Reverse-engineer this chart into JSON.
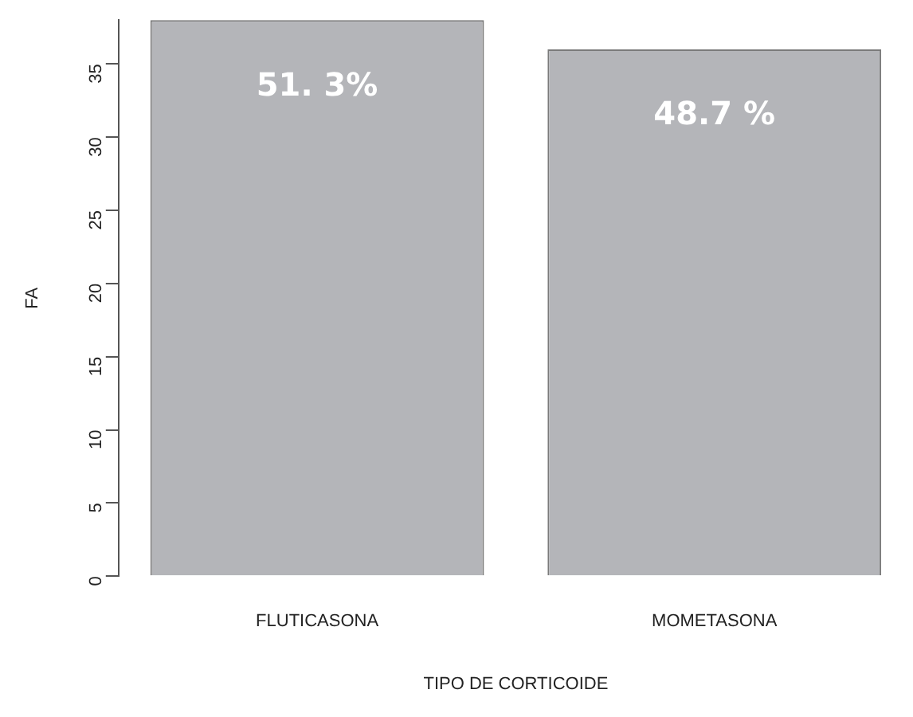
{
  "chart_data": {
    "type": "bar",
    "xlabel": "TIPO DE CORTICOIDE",
    "ylabel": "FA",
    "categories": [
      "FLUTICASONA",
      "MOMETASONA"
    ],
    "values": [
      38,
      36
    ],
    "color": "#b4b5b9",
    "annotations": [
      {
        "text": "51. 3%",
        "x": "FLUTICASONA",
        "y": 38
      },
      {
        "text": "48.7 %",
        "x": "MOMETASONA",
        "y": 36
      }
    ],
    "ylim": [
      0,
      38
    ],
    "yticks": [
      0,
      5,
      10,
      15,
      20,
      25,
      30,
      35
    ],
    "grid": false
  }
}
